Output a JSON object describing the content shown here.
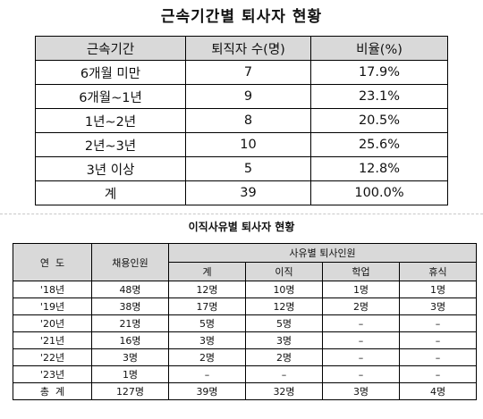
{
  "title1": "근속기간별 퇴사자 현황",
  "table1": {
    "headers": [
      "근속기간",
      "퇴직자 수(명)",
      "비율(%)"
    ],
    "rows": [
      [
        "6개월 미만",
        "7",
        "17.9%"
      ],
      [
        "6개월~1년",
        "9",
        "23.1%"
      ],
      [
        "1년~2년",
        "8",
        "20.5%"
      ],
      [
        "2년~3년",
        "10",
        "25.6%"
      ],
      [
        "3년 이상",
        "5",
        "12.8%"
      ],
      [
        "계",
        "39",
        "100.0%"
      ]
    ]
  },
  "title2": "이직사유별 퇴사자 현황",
  "table2": {
    "header_year": "연  도",
    "header_hired": "채용인원",
    "header_group": "사유별 퇴사인원",
    "sub_headers": [
      "계",
      "이직",
      "학업",
      "휴식"
    ],
    "rows": [
      [
        "'18년",
        "48명",
        "12명",
        "10명",
        "1명",
        "1명"
      ],
      [
        "'19년",
        "38명",
        "17명",
        "12명",
        "2명",
        "3명"
      ],
      [
        "'20년",
        "21명",
        "5명",
        "5명",
        "–",
        "–"
      ],
      [
        "'21년",
        "16명",
        "3명",
        "3명",
        "–",
        "–"
      ],
      [
        "'22년",
        "3명",
        "2명",
        "2명",
        "–",
        "–"
      ],
      [
        "'23년",
        "1명",
        "–",
        "–",
        "–",
        "–"
      ],
      [
        "총  계",
        "127명",
        "39명",
        "32명",
        "3명",
        "4명"
      ]
    ]
  }
}
